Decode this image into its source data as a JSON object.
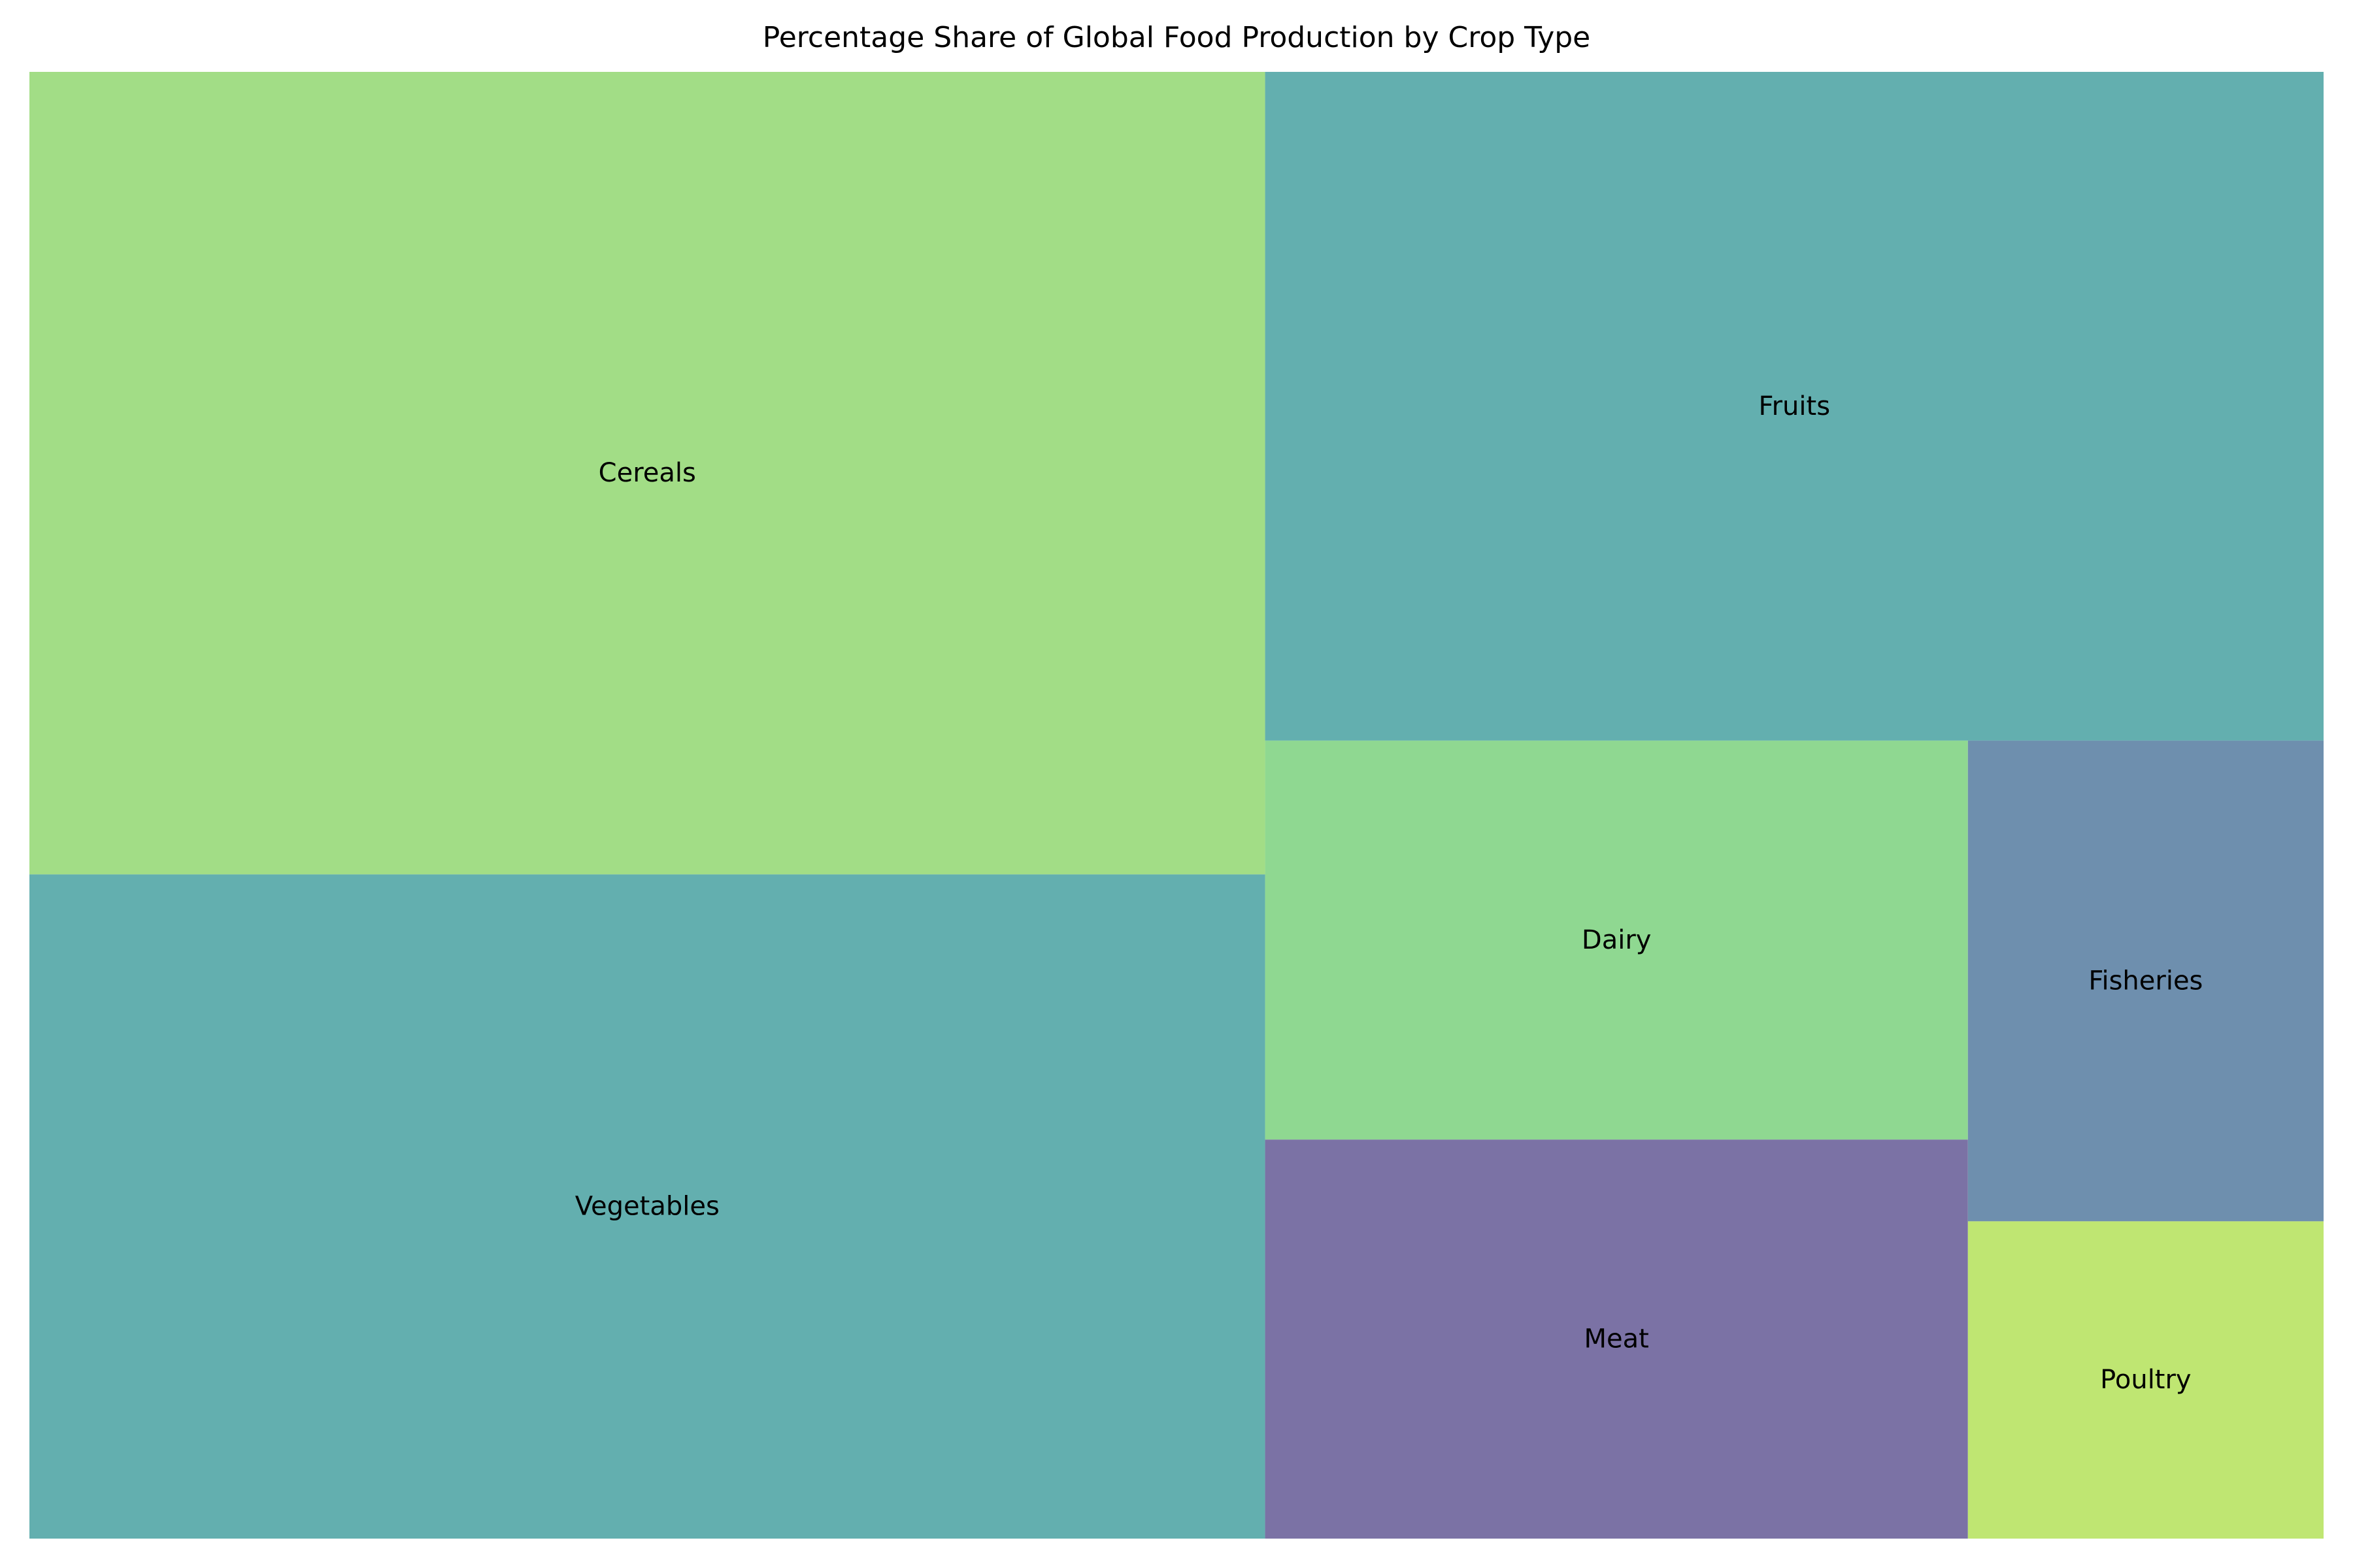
{
  "chart_data": {
    "type": "treemap",
    "title": "Percentage Share of Global Food Production by Crop Type",
    "xlabel": "",
    "ylabel": "",
    "grid": false,
    "legend": "none",
    "categories": [
      "Cereals",
      "Vegetables",
      "Fruits",
      "Dairy",
      "Meat",
      "Fisheries",
      "Poultry"
    ],
    "values": [
      29,
      24,
      20.7,
      8.2,
      8.2,
      5,
      3.3
    ],
    "colors": [
      "#a2dd86",
      "#63afaf",
      "#63afaf",
      "#8fd891",
      "#7b72a5",
      "#6e8fae",
      "#bfe672"
    ]
  }
}
